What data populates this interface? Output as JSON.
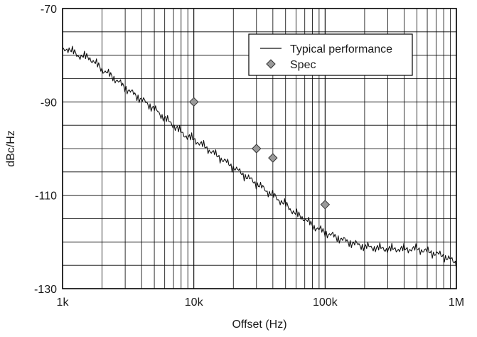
{
  "chart_data": {
    "type": "line",
    "title": "",
    "xlabel": "Offset (Hz)",
    "ylabel": "dBc/Hz",
    "x_scale": "log",
    "xlim": [
      1000,
      1000000
    ],
    "ylim": [
      -130,
      -70
    ],
    "x_ticks": [
      {
        "value": 1000,
        "label": "1k"
      },
      {
        "value": 10000,
        "label": "10k"
      },
      {
        "value": 100000,
        "label": "100k"
      },
      {
        "value": 1000000,
        "label": "1M"
      }
    ],
    "y_ticks": [
      {
        "value": -70,
        "label": "-70"
      },
      {
        "value": -90,
        "label": "-90"
      },
      {
        "value": -110,
        "label": "-110"
      },
      {
        "value": -130,
        "label": "-130"
      }
    ],
    "y_minor_step": 5,
    "grid": true,
    "legend_position": "top-right",
    "series": [
      {
        "name": "Typical performance",
        "kind": "line",
        "color": "#111111",
        "x": [
          1000,
          1100,
          1300,
          1600,
          2000,
          2500,
          3000,
          4000,
          5000,
          6000,
          7000,
          8000,
          9000,
          10000,
          12000,
          15000,
          20000,
          25000,
          30000,
          40000,
          50000,
          60000,
          70000,
          80000,
          100000,
          150000,
          200000,
          300000,
          400000,
          500000,
          600000,
          800000,
          1000000
        ],
        "y": [
          -79,
          -78.5,
          -80,
          -80.5,
          -83,
          -85,
          -87,
          -89.5,
          -91.5,
          -93.5,
          -95,
          -96.5,
          -97.5,
          -98,
          -99.5,
          -101.5,
          -104,
          -106,
          -107.5,
          -110,
          -112,
          -114,
          -115,
          -116.5,
          -118,
          -120,
          -121,
          -121.5,
          -121.5,
          -121.5,
          -122,
          -123,
          -124.5
        ]
      },
      {
        "name": "Spec",
        "kind": "marker",
        "marker": "diamond",
        "color": "#9a9a9a",
        "x": [
          10000,
          30000,
          40000,
          100000
        ],
        "y": [
          -90,
          -100,
          -102,
          -112
        ]
      }
    ]
  }
}
